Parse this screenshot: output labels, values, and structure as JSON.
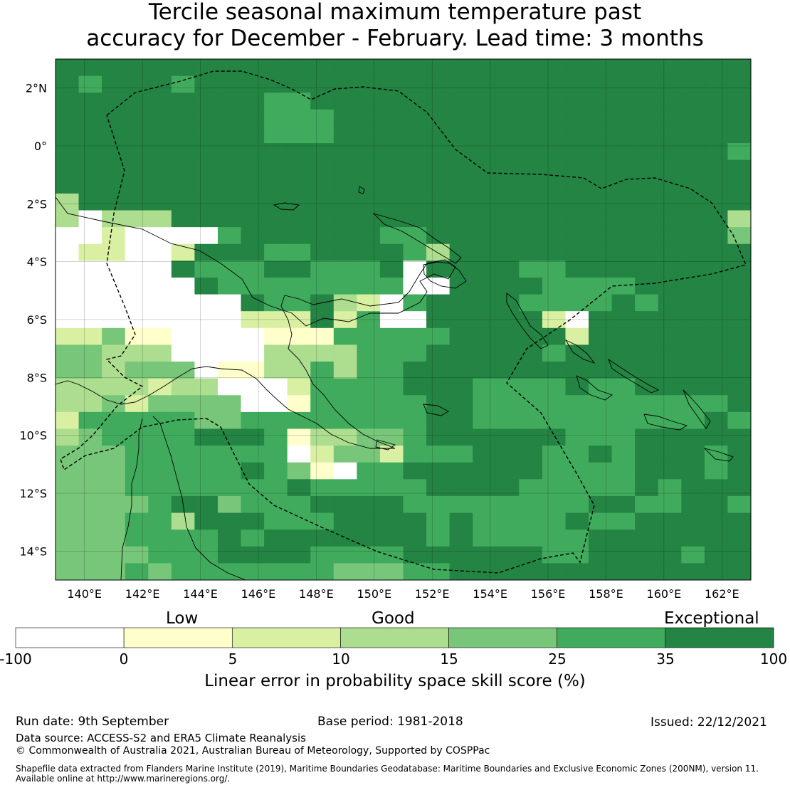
{
  "title": {
    "line1": "Tercile seasonal maximum temperature past",
    "line2": "accuracy for December - February. Lead time: 3 months"
  },
  "map": {
    "lon_ticks": [
      "140°E",
      "142°E",
      "144°E",
      "146°E",
      "148°E",
      "150°E",
      "152°E",
      "154°E",
      "156°E",
      "158°E",
      "160°E",
      "162°E"
    ],
    "lat_ticks": [
      "2°N",
      "0°",
      "2°S",
      "4°S",
      "6°S",
      "8°S",
      "10°S",
      "12°S",
      "14°S"
    ],
    "lon_range": [
      139,
      163
    ],
    "lat_range": [
      -15,
      3
    ],
    "cell_deg": 0.8
  },
  "colorbar": {
    "tiers": [
      "Low",
      "Good",
      "Exceptional"
    ],
    "ticks": [
      "-100",
      "0",
      "5",
      "10",
      "15",
      "25",
      "35",
      "100"
    ],
    "colors": [
      "#ffffff",
      "#ffffcc",
      "#d9f0a3",
      "#addd8e",
      "#78c679",
      "#41ab5d",
      "#238443"
    ],
    "label": "Linear error in probability space skill score (%)"
  },
  "footer": {
    "run_date": "Run date: 9th September",
    "base_period": "Base period: 1981-2018",
    "issued": "Issued: 22/12/2021",
    "data_source": "Data source: ACCESS-S2 and ERA5 Climate Reanalysis",
    "copyright": "© Commonwealth of Australia 2021, Australian Bureau of Meteorology, Supported by COSPPac",
    "shapefile_line1": "Shapefile data extracted from Flanders Marine Institute (2019), Maritime Boundaries Geodatabase: Maritime Boundaries and Exclusive Economic Zones (200NM), version 11.",
    "shapefile_line2": "Available online at http://www.marineregions.org/."
  }
}
